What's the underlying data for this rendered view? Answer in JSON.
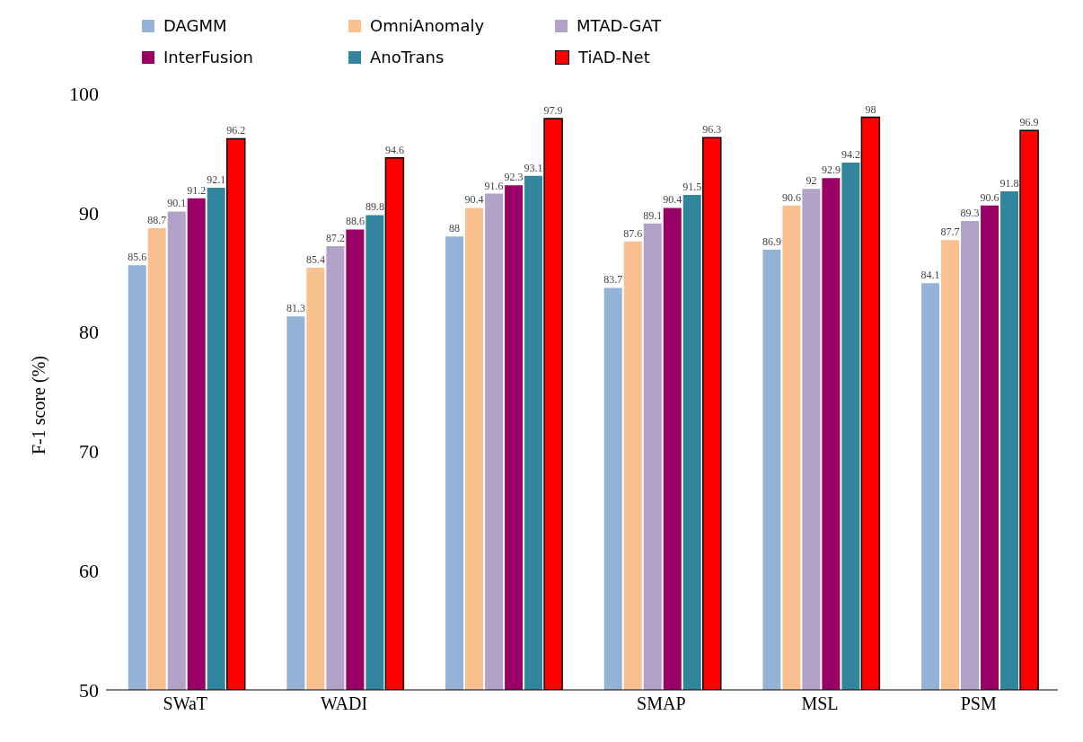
{
  "chart_data": {
    "type": "bar",
    "ylabel": "F-1 score (%)",
    "categories": [
      "SWaT",
      "WADI",
      null,
      "SMAP",
      "MSL",
      "PSM"
    ],
    "series": [
      {
        "name": "DAGMM",
        "color": "#95b3d7",
        "values": [
          85.6,
          81.3,
          88,
          83.7,
          86.9,
          84.1
        ]
      },
      {
        "name": "OmniAnomaly",
        "color": "#fac090",
        "values": [
          88.7,
          85.4,
          90.4,
          87.6,
          90.6,
          87.7
        ]
      },
      {
        "name": "MTAD-GAT",
        "color": "#b3a2c7",
        "values": [
          90.1,
          87.2,
          91.6,
          89.1,
          92,
          89.3
        ]
      },
      {
        "name": "InterFusion",
        "color": "#990066",
        "values": [
          91.2,
          88.6,
          92.3,
          90.4,
          92.9,
          90.6
        ]
      },
      {
        "name": "AnoTrans",
        "color": "#31859c",
        "values": [
          92.1,
          89.8,
          93.1,
          91.5,
          94.2,
          91.8
        ]
      },
      {
        "name": "TiAD-Net",
        "color": "#ff0000",
        "values": [
          96.2,
          94.6,
          97.9,
          96.3,
          98,
          96.9
        ]
      }
    ],
    "ylim": [
      50,
      100
    ],
    "yticks": [
      50,
      60,
      70,
      80,
      90,
      100
    ],
    "grid": false,
    "legend": "top",
    "data_labels": true
  }
}
